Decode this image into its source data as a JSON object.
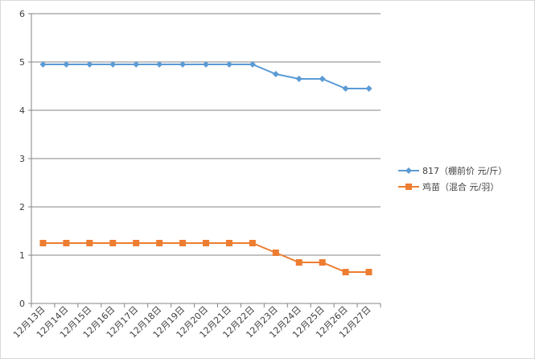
{
  "chart_data": {
    "type": "line",
    "title": "",
    "xlabel": "",
    "ylabel": "",
    "ylim": [
      0,
      6
    ],
    "yticks": [
      "0",
      "1",
      "2",
      "3",
      "4",
      "5",
      "6"
    ],
    "grid": true,
    "legend_position": "right",
    "categories": [
      "12月13日",
      "12月14日",
      "12月15日",
      "12月16日",
      "12月17日",
      "12月18日",
      "12月19日",
      "12月20日",
      "12月21日",
      "12月22日",
      "12月23日",
      "12月24日",
      "12月25日",
      "12月26日",
      "12月27日"
    ],
    "series": [
      {
        "name": "817（棚前价 元/斤）",
        "color": "#5b9bd5",
        "marker": "diamond",
        "values": [
          4.95,
          4.95,
          4.95,
          4.95,
          4.95,
          4.95,
          4.95,
          4.95,
          4.95,
          4.95,
          4.75,
          4.65,
          4.65,
          4.45,
          4.45
        ]
      },
      {
        "name": "鸡苗（混合 元/羽）",
        "color": "#ed7d31",
        "marker": "square",
        "values": [
          1.25,
          1.25,
          1.25,
          1.25,
          1.25,
          1.25,
          1.25,
          1.25,
          1.25,
          1.25,
          1.05,
          0.85,
          0.85,
          0.65,
          0.65
        ]
      }
    ]
  }
}
